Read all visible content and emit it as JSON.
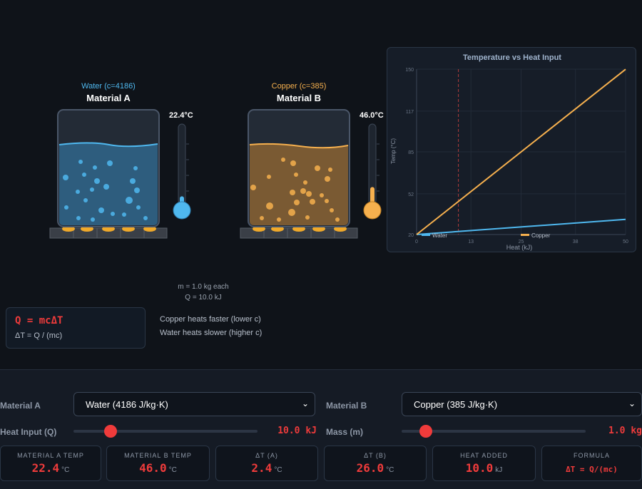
{
  "colors": {
    "background": "#0f1319",
    "water": "#4fb8ef",
    "copper": "#f6b04e",
    "accent_red": "#ef3b3b",
    "panel": "#151b25"
  },
  "material_a": {
    "subtitle": "Water (c=4186)",
    "title": "Material A",
    "temp_readout": "22.4°C",
    "fill_fraction": 0.08
  },
  "material_b": {
    "subtitle": "Copper (c=385)",
    "title": "Material B",
    "temp_readout": "46.0°C",
    "fill_fraction": 0.2
  },
  "info": {
    "mass_line": "m = 1.0 kg each",
    "heat_line": "Q = 10.0 kJ"
  },
  "formula": {
    "main": "Q = mcΔT",
    "sub": "ΔT = Q / (mc)"
  },
  "notes": {
    "line1": "Copper heats faster (lower c)",
    "line2": "Water heats slower (higher c)"
  },
  "controls": {
    "material_a_label": "Material A",
    "material_a_selected": "Water (4186 J/kg·K)",
    "material_b_label": "Material B",
    "material_b_selected": "Copper (385 J/kg·K)",
    "heat_label": "Heat Input (Q)",
    "heat_value": "10.0 kJ",
    "heat_fraction": 0.2,
    "mass_label": "Mass (m)",
    "mass_value": "1.0 kg",
    "mass_fraction": 0.13
  },
  "stats": [
    {
      "label": "MATERIAL A TEMP",
      "value": "22.4",
      "unit": "°C"
    },
    {
      "label": "MATERIAL B TEMP",
      "value": "46.0",
      "unit": "°C"
    },
    {
      "label": "ΔT (A)",
      "value": "2.4",
      "unit": "°C"
    },
    {
      "label": "ΔT (B)",
      "value": "26.0",
      "unit": "°C"
    },
    {
      "label": "HEAT ADDED",
      "value": "10.0",
      "unit": "kJ"
    },
    {
      "label": "FORMULA",
      "formula": "ΔT = Q/(mc)"
    }
  ],
  "chart_data": {
    "type": "line",
    "title": "Temperature vs Heat Input",
    "xlabel": "Heat (kJ)",
    "ylabel": "Temp (°C)",
    "xlim": [
      0,
      50
    ],
    "ylim": [
      20,
      150
    ],
    "x_ticks": [
      "0",
      "13",
      "25",
      "38",
      "50"
    ],
    "y_ticks": [
      "20",
      "52",
      "85",
      "117",
      "150"
    ],
    "marker_x": 10,
    "grid": true,
    "legend": "bottom",
    "series": [
      {
        "name": "Water",
        "color": "#4fb8ef",
        "x": [
          0,
          50
        ],
        "y": [
          20,
          31.9
        ]
      },
      {
        "name": "Copper",
        "color": "#f6b04e",
        "x": [
          0,
          50
        ],
        "y": [
          20,
          149.9
        ]
      }
    ]
  }
}
